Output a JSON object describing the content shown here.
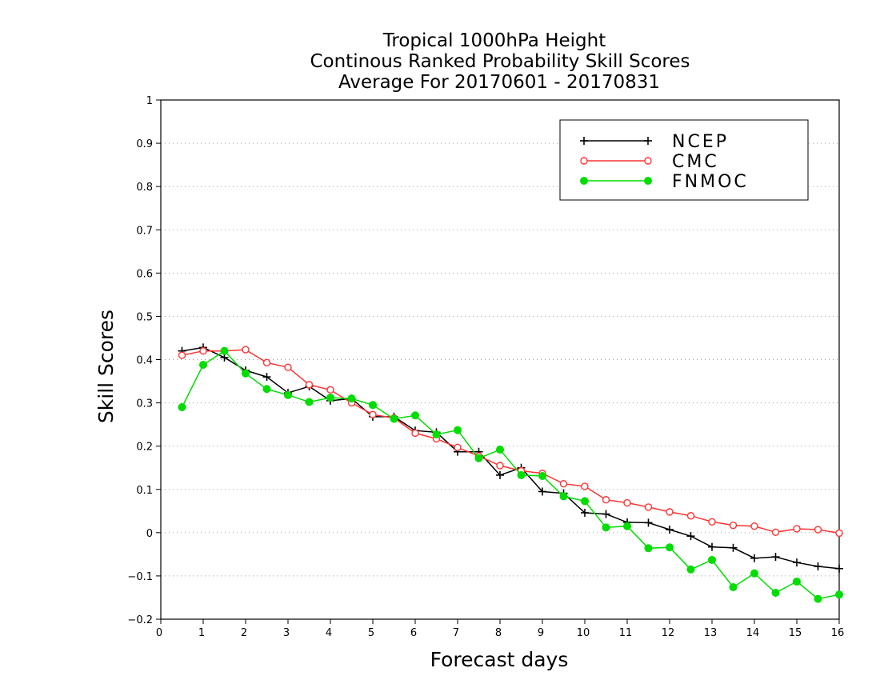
{
  "chart_data": {
    "type": "line",
    "title_lines": [
      "Tropical 1000hPa Height",
      "Continous Ranked Probability Skill Scores",
      "Average For 20170601 - 20170831"
    ],
    "xlabel": "Forecast days",
    "ylabel": "Skill Scores",
    "xlim": [
      0,
      16
    ],
    "ylim": [
      -0.2,
      1
    ],
    "x_ticks": [
      0,
      1,
      2,
      3,
      4,
      5,
      6,
      7,
      8,
      9,
      10,
      11,
      12,
      13,
      14,
      15,
      16
    ],
    "x_tick_labels": [
      "0",
      "1",
      "2",
      "3",
      "4",
      "5",
      "6",
      "7",
      "8",
      "9",
      "10",
      "11",
      "12",
      "13",
      "14",
      "15",
      "16"
    ],
    "y_ticks": [
      -0.2,
      -0.1,
      0,
      0.1,
      0.2,
      0.3,
      0.4,
      0.5,
      0.6,
      0.7,
      0.8,
      0.9,
      1
    ],
    "y_tick_labels": [
      "−0.2",
      "−0.1",
      "0",
      "0.1",
      "0.2",
      "0.3",
      "0.4",
      "0.5",
      "0.6",
      "0.7",
      "0.8",
      "0.9",
      "1"
    ],
    "grid": "horizontal dotted",
    "legend_position": "top-right",
    "x": [
      0.5,
      1,
      1.5,
      2,
      2.5,
      3,
      3.5,
      4,
      4.5,
      5,
      5.5,
      6,
      6.5,
      7,
      7.5,
      8,
      8.5,
      9,
      9.5,
      10,
      10.5,
      11,
      11.5,
      12,
      12.5,
      13,
      13.5,
      14,
      14.5,
      15,
      15.5,
      16
    ],
    "series": [
      {
        "name": "NCEP",
        "color": "#000000",
        "marker": "plus",
        "values": [
          0.42,
          0.428,
          0.405,
          0.375,
          0.36,
          0.323,
          0.338,
          0.305,
          0.31,
          0.268,
          0.268,
          0.236,
          0.232,
          0.187,
          0.187,
          0.133,
          0.15,
          0.095,
          0.091,
          0.046,
          0.043,
          0.024,
          0.023,
          0.007,
          -0.008,
          -0.033,
          -0.035,
          -0.059,
          -0.056,
          -0.069,
          -0.078,
          -0.083
        ]
      },
      {
        "name": "CMC",
        "color": "#ff3333",
        "marker": "open-circle",
        "values": [
          0.41,
          0.42,
          0.42,
          0.423,
          0.393,
          0.382,
          0.342,
          0.33,
          0.3,
          0.273,
          0.265,
          0.23,
          0.217,
          0.197,
          0.177,
          0.155,
          0.143,
          0.137,
          0.113,
          0.107,
          0.076,
          0.069,
          0.059,
          0.048,
          0.039,
          0.025,
          0.017,
          0.015,
          0.001,
          0.009,
          0.007,
          -0.001
        ]
      },
      {
        "name": "FNMOC",
        "color": "#00dd00",
        "marker": "filled-circle",
        "values": [
          0.29,
          0.388,
          0.42,
          0.368,
          0.332,
          0.318,
          0.302,
          0.312,
          0.31,
          0.295,
          0.263,
          0.271,
          0.227,
          0.237,
          0.172,
          0.192,
          0.133,
          0.131,
          0.084,
          0.073,
          0.012,
          0.015,
          -0.036,
          -0.034,
          -0.085,
          -0.063,
          -0.126,
          -0.094,
          -0.139,
          -0.113,
          -0.153,
          -0.143
        ]
      }
    ]
  }
}
